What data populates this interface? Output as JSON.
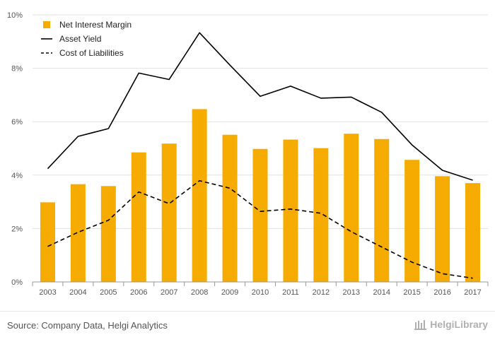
{
  "chart_data": {
    "type": "bar+line",
    "categories": [
      "2003",
      "2004",
      "2005",
      "2006",
      "2007",
      "2008",
      "2009",
      "2010",
      "2011",
      "2012",
      "2013",
      "2014",
      "2015",
      "2016",
      "2017"
    ],
    "series": [
      {
        "name": "Net Interest Margin",
        "type": "bar",
        "color": "#f5ab00",
        "values": [
          2.98,
          3.66,
          3.59,
          4.85,
          5.18,
          6.47,
          5.51,
          4.98,
          5.33,
          5.01,
          5.55,
          5.35,
          4.57,
          3.96,
          3.7
        ]
      },
      {
        "name": "Asset Yield",
        "type": "line",
        "dash": false,
        "color": "#000000",
        "values": [
          4.24,
          5.45,
          5.74,
          7.82,
          7.58,
          9.33,
          8.12,
          6.95,
          7.33,
          6.88,
          6.92,
          6.35,
          5.13,
          4.18,
          3.81
        ]
      },
      {
        "name": "Cost of Liabilities",
        "type": "line",
        "dash": true,
        "color": "#000000",
        "values": [
          1.33,
          1.86,
          2.31,
          3.37,
          2.93,
          3.79,
          3.51,
          2.64,
          2.73,
          2.57,
          1.88,
          1.31,
          0.74,
          0.31,
          0.14
        ]
      }
    ],
    "yticks": [
      "0%",
      "2%",
      "4%",
      "6%",
      "8%",
      "10%"
    ],
    "ylim": [
      0,
      10
    ],
    "grid": true,
    "legend": "top-left"
  },
  "footer": {
    "source": "Source: Company Data, Helgi Analytics",
    "brand": "HelgiLibrary"
  }
}
